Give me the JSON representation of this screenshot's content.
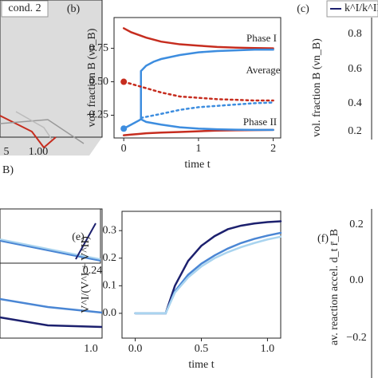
{
  "chart_data": [
    {
      "type": "line",
      "panel": "(b)",
      "xlabel": "time t",
      "ylabel": "vol. fraction B (νn_B)",
      "xlim": [
        -0.13,
        2.1
      ],
      "ylim": [
        0.08,
        0.98
      ],
      "xticks": [
        0,
        1,
        2
      ],
      "yticks": [
        0.25,
        {
          "value": 0.5,
          "label": "0.50"
        },
        0.75
      ],
      "annotations": [
        "Phase I",
        "Average",
        "Phase II"
      ],
      "series": [
        {
          "color": "#c62d1f",
          "x": [
            0,
            0.1,
            0.2,
            0.3,
            0.5,
            0.75,
            1,
            1.25,
            1.5,
            1.75,
            2
          ],
          "values": [
            0.9,
            0.87,
            0.85,
            0.83,
            0.8,
            0.78,
            0.77,
            0.76,
            0.755,
            0.752,
            0.75
          ]
        },
        {
          "color": "#c62d1f",
          "x": [
            0,
            0.1,
            0.2,
            0.3,
            0.5,
            0.75,
            1,
            1.25,
            1.5,
            1.75,
            2
          ],
          "values": [
            0.1,
            0.105,
            0.11,
            0.115,
            0.12,
            0.125,
            0.13,
            0.135,
            0.137,
            0.139,
            0.14
          ]
        },
        {
          "color": "#3d8ddf",
          "x": [
            0.23,
            0.23,
            0.3,
            0.4,
            0.5,
            0.75,
            1,
            1.25,
            1.5,
            1.75,
            2
          ],
          "values": [
            0.22,
            0.58,
            0.62,
            0.65,
            0.67,
            0.7,
            0.72,
            0.73,
            0.735,
            0.74,
            0.74
          ]
        },
        {
          "color": "#3d8ddf",
          "x": [
            0,
            0.1,
            0.2,
            0.23,
            0.3,
            0.5,
            0.75,
            1,
            1.25,
            1.5,
            1.75,
            2
          ],
          "values": [
            0.15,
            0.18,
            0.21,
            0.22,
            0.2,
            0.18,
            0.16,
            0.15,
            0.145,
            0.142,
            0.14,
            0.14
          ],
          "marker_first": true
        },
        {
          "color": "#c62d1f",
          "dash": "dotted",
          "x": [
            0,
            0.25,
            0.5,
            0.75,
            1,
            1.25,
            1.5,
            1.75,
            2
          ],
          "values": [
            0.5,
            0.46,
            0.42,
            0.39,
            0.38,
            0.37,
            0.365,
            0.36,
            0.36
          ],
          "marker_first": true
        },
        {
          "color": "#3d8ddf",
          "dash": "dotted",
          "x": [
            0.23,
            0.5,
            0.75,
            1,
            1.25,
            1.5,
            1.75,
            2
          ],
          "values": [
            0.23,
            0.26,
            0.29,
            0.31,
            0.32,
            0.33,
            0.34,
            0.345
          ]
        }
      ]
    },
    {
      "type": "line",
      "panel": "(e)",
      "xlabel": "time t",
      "ylabel": "V^I/(V^I + V^II)",
      "xlim": [
        -0.1,
        1.1
      ],
      "ylim": [
        -0.09,
        0.37
      ],
      "xticks": [
        {
          "value": 0,
          "label": "0.0"
        },
        0.5,
        {
          "value": 1,
          "label": "1.0"
        }
      ],
      "yticks": [
        {
          "value": 0,
          "label": "0.0"
        },
        0.1,
        0.2,
        0.3
      ],
      "x": [
        0,
        0.1,
        0.2,
        0.23,
        0.3,
        0.4,
        0.5,
        0.6,
        0.7,
        0.8,
        0.9,
        1,
        1.1
      ],
      "series": [
        {
          "color": "#1c206e",
          "values": [
            0,
            0,
            0,
            0,
            0.1,
            0.19,
            0.245,
            0.28,
            0.305,
            0.318,
            0.326,
            0.331,
            0.334
          ]
        },
        {
          "color": "#4a86d4",
          "values": [
            0,
            0,
            0,
            0,
            0.08,
            0.14,
            0.18,
            0.21,
            0.235,
            0.255,
            0.27,
            0.282,
            0.292
          ]
        },
        {
          "color": "#a9d4ef",
          "values": [
            0,
            0,
            0,
            0,
            0.075,
            0.13,
            0.17,
            0.2,
            0.222,
            0.24,
            0.255,
            0.268,
            0.278
          ]
        }
      ]
    }
  ],
  "fragments": [
    "cond. 2",
    "5",
    "1.00",
    "B)",
    "(c)",
    "k^I/k^II",
    "vol. fraction B (νn_B)",
    "0.8",
    "0.6",
    "0.4",
    "0.2",
    "(f)",
    "av. reaction accel. d_t r̄_B",
    "0.2",
    "0.0",
    "−0.2",
    "0.24",
    "1.0"
  ]
}
